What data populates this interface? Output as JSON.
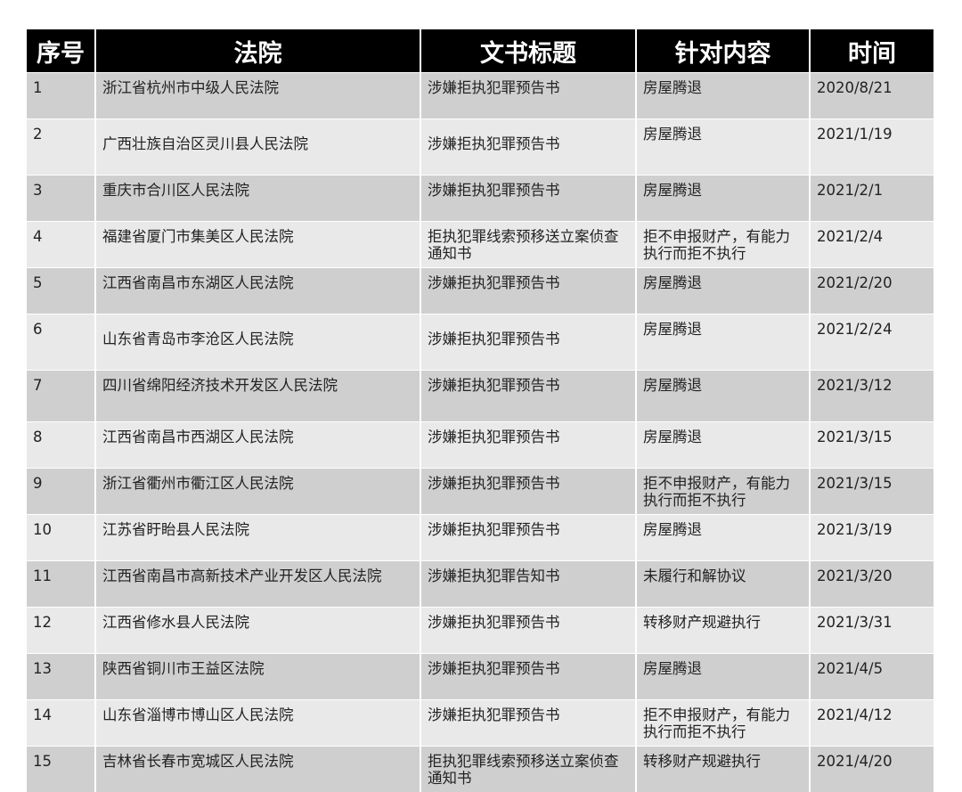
{
  "headers": [
    "序号",
    "法院",
    "文书标题",
    "针对内容",
    "时间"
  ],
  "rows": [
    [
      "1",
      "浙江省杭州市中级人民法院",
      "涉嫌拒执犯罪预告书",
      "房屋腾退",
      "2020/8/21"
    ],
    [
      "2",
      "广西壮族自治区灵川县人民法院",
      "涉嫌拒执犯罪预告书",
      "房屋腾退",
      "2021/1/19"
    ],
    [
      "3",
      "重庆市合川区人民法院",
      "涉嫌拒执犯罪预告书",
      "房屋腾退",
      "2021/2/1"
    ],
    [
      "4",
      "福建省厦门市集美区人民法院",
      "拒执犯罪线索预移送立案侦查通知书",
      "拒不申报财产，有能力执行而拒不执行",
      "2021/2/4"
    ],
    [
      "5",
      "江西省南昌市东湖区人民法院",
      "涉嫌拒执犯罪预告书",
      "房屋腾退",
      "2021/2/20"
    ],
    [
      "6",
      "山东省青岛市李沧区人民法院",
      "涉嫌拒执犯罪预告书",
      "房屋腾退",
      "2021/2/24"
    ],
    [
      "7",
      "四川省绵阳经济技术开发区人民法院",
      "涉嫌拒执犯罪预告书",
      "房屋腾退",
      "2021/3/12"
    ],
    [
      "8",
      "江西省南昌市西湖区人民法院",
      "涉嫌拒执犯罪预告书",
      "房屋腾退",
      "2021/3/15"
    ],
    [
      "9",
      "浙江省衢州市衢江区人民法院",
      "涉嫌拒执犯罪预告书",
      "拒不申报财产，有能力执行而拒不执行",
      "2021/3/15"
    ],
    [
      "10",
      "江苏省盱眙县人民法院",
      "涉嫌拒执犯罪预告书",
      "房屋腾退",
      "2021/3/19"
    ],
    [
      "11",
      "江西省南昌市高新技术产业开发区人民法院",
      "涉嫌拒执犯罪告知书",
      "未履行和解协议",
      "2021/3/20"
    ],
    [
      "12",
      "江西省修水县人民法院",
      "涉嫌拒执犯罪预告书",
      "转移财产规避执行",
      "2021/3/31"
    ],
    [
      "13",
      "陕西省铜川市王益区法院",
      "涉嫌拒执犯罪预告书",
      "房屋腾退",
      "2021/4/5"
    ],
    [
      "14",
      "山东省淄博市博山区人民法院",
      "涉嫌拒执犯罪预告书",
      "拒不申报财产，有能力执行而拒不执行",
      "2021/4/12"
    ],
    [
      "15",
      "吉林省长春市宽城区人民法院",
      "拒执犯罪线索预移送立案侦查通知书",
      "转移财产规避执行",
      "2021/4/20"
    ]
  ]
}
